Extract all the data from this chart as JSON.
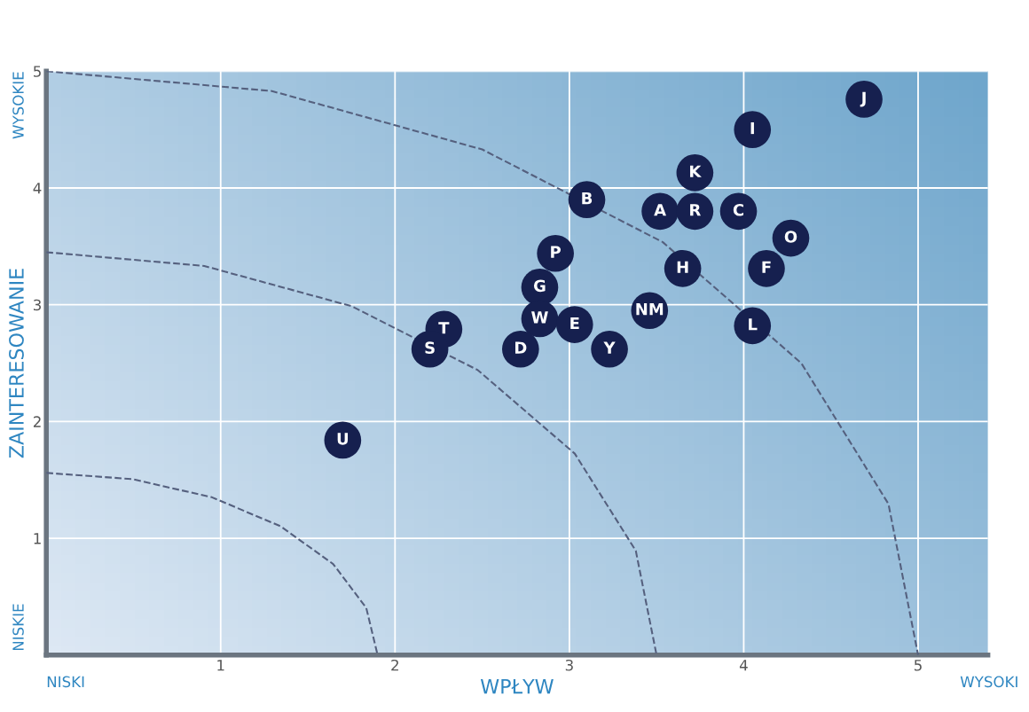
{
  "chart_data": {
    "type": "scatter",
    "xlabel": "WPŁYW",
    "ylabel": "ZAINTERESOWANIE",
    "xlim": [
      0,
      5.4
    ],
    "ylim": [
      0,
      5
    ],
    "xticks": [
      1,
      2,
      3,
      4,
      5
    ],
    "yticks": [
      1,
      2,
      3,
      4,
      5
    ],
    "grid": true,
    "series": [
      {
        "marker": "circle",
        "color": "#16204f",
        "x": [
          4.69,
          4.05,
          3.72,
          3.1,
          3.52,
          3.72,
          3.97,
          4.27,
          4.13,
          3.65,
          2.92,
          2.83,
          3.46,
          2.83,
          3.03,
          4.05,
          2.28,
          2.2,
          2.72,
          3.23,
          1.7
        ],
        "values": [
          4.76,
          4.5,
          4.13,
          3.9,
          3.8,
          3.8,
          3.8,
          3.57,
          3.31,
          3.31,
          3.44,
          3.15,
          2.95,
          2.88,
          2.83,
          2.82,
          2.79,
          2.62,
          2.62,
          2.62,
          1.84
        ],
        "value_labels": [
          "J",
          "I",
          "K",
          "B",
          "A",
          "R",
          "C",
          "O",
          "F",
          "H",
          "P",
          "G",
          "NM",
          "W",
          "E",
          "L",
          "T",
          "S",
          "D",
          "Y",
          "U"
        ]
      },
      {
        "type": "line",
        "color": "#55607e",
        "line_style": "dashed",
        "x": [
          0,
          1.294,
          2.5,
          3.536,
          4.33,
          4.83,
          5
        ],
        "values": [
          5,
          4.83,
          4.33,
          3.536,
          2.5,
          1.294,
          0
        ]
      },
      {
        "type": "line",
        "color": "#55607e",
        "line_style": "dashed",
        "x": [
          0,
          0.906,
          1.75,
          2.475,
          3.031,
          3.381,
          3.5
        ],
        "values": [
          3.45,
          3.332,
          2.988,
          2.44,
          1.725,
          0.893,
          0
        ]
      },
      {
        "type": "line",
        "color": "#55607e",
        "line_style": "dashed",
        "x": [
          0,
          0.492,
          0.95,
          1.343,
          1.645,
          1.835,
          1.9
        ],
        "values": [
          1.56,
          1.507,
          1.351,
          1.103,
          0.78,
          0.404,
          0
        ]
      }
    ],
    "annotations": [
      "NISKI",
      "WYSOKI",
      "NISKIE",
      "WYSOKIE"
    ]
  }
}
